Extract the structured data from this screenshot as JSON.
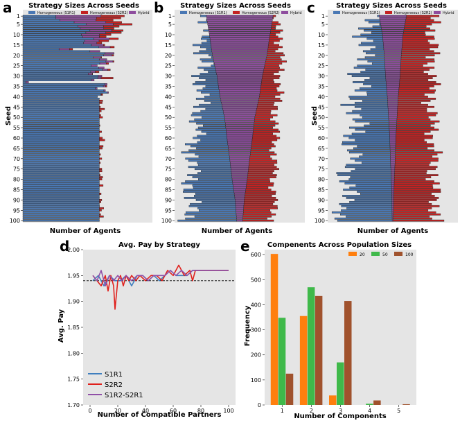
{
  "colors": {
    "s1r1": "#4a78b4",
    "s2r2": "#c42222",
    "hybrid": "#8e4d9e",
    "bar_edge": "#1a1a1a",
    "bg": "#e5e5e5",
    "orange": "#ff7f0e",
    "green": "#3fb94a",
    "brown": "#a0522d",
    "line_blue": "#3f7fbf",
    "line_red": "#e0201c",
    "line_purple": "#9050a8"
  },
  "panel_labels": [
    "a",
    "b",
    "c",
    "d",
    "e"
  ],
  "chart_data": [
    {
      "type": "bar",
      "orientation": "horizontal-stacked",
      "panel": "a",
      "title": "Strategy Sizes Across Seeds",
      "xlabel": "Number of Agents",
      "ylabel": "Seed",
      "legend": [
        "Homogeneous (S1R1)",
        "Homogeneous (S2R2)",
        "Hybrid"
      ],
      "ytick_labels": [
        "1",
        "5",
        "10",
        "15",
        "20",
        "25",
        "30",
        "35",
        "40",
        "45",
        "50",
        "55",
        "60",
        "65",
        "70",
        "75",
        "80",
        "85",
        "90",
        "95",
        "100"
      ],
      "n_seeds": 100,
      "x_max": 215,
      "profile": {
        "s1": [
          [
            1,
            40
          ],
          [
            5,
            88
          ],
          [
            10,
            108
          ],
          [
            15,
            115
          ],
          [
            20,
            120
          ],
          [
            30,
            125
          ],
          [
            38,
            127
          ],
          [
            100,
            127
          ]
        ],
        "h": [
          [
            1,
            75
          ],
          [
            5,
            45
          ],
          [
            10,
            30
          ],
          [
            15,
            20
          ],
          [
            20,
            14
          ],
          [
            30,
            6
          ],
          [
            38,
            2
          ],
          [
            40,
            0
          ],
          [
            100,
            0
          ]
        ],
        "s2": [
          [
            1,
            40
          ],
          [
            5,
            28
          ],
          [
            10,
            15
          ],
          [
            15,
            6
          ],
          [
            20,
            2
          ],
          [
            25,
            0
          ],
          [
            100,
            0
          ]
        ]
      },
      "noise": {
        "s1": 22,
        "h": 0,
        "s2": 10
      }
    },
    {
      "type": "bar",
      "orientation": "horizontal-stacked",
      "panel": "b",
      "title": "Strategy Sizes Across Seeds",
      "xlabel": "Number of Agents",
      "ylabel": "",
      "legend": [
        "Homogeneous (S1R1)",
        "Homogeneous (S2R2)",
        "Hybrid"
      ],
      "ytick_labels": [
        "1",
        "5",
        "10",
        "15",
        "20",
        "25",
        "30",
        "35",
        "40",
        "45",
        "50",
        "55",
        "60",
        "65",
        "70",
        "75",
        "80",
        "85",
        "90",
        "95",
        "100"
      ],
      "n_seeds": 100,
      "x_max": 215,
      "profile": {
        "s1": [
          [
            1,
            0
          ],
          [
            3,
            2
          ],
          [
            10,
            8
          ],
          [
            20,
            15
          ],
          [
            30,
            25
          ],
          [
            40,
            32
          ],
          [
            50,
            42
          ],
          [
            60,
            52
          ],
          [
            70,
            60
          ],
          [
            80,
            68
          ],
          [
            90,
            74
          ],
          [
            100,
            80
          ]
        ],
        "h": [
          [
            1,
            110
          ],
          [
            5,
            106
          ],
          [
            10,
            100
          ],
          [
            20,
            90
          ],
          [
            30,
            75
          ],
          [
            40,
            65
          ],
          [
            50,
            50
          ],
          [
            60,
            42
          ],
          [
            70,
            33
          ],
          [
            80,
            25
          ],
          [
            90,
            15
          ],
          [
            100,
            10
          ]
        ],
        "s2": [
          [
            1,
            0
          ],
          [
            3,
            2
          ],
          [
            10,
            15
          ],
          [
            20,
            22
          ],
          [
            30,
            28
          ],
          [
            40,
            30
          ],
          [
            50,
            32
          ],
          [
            60,
            38
          ],
          [
            70,
            40
          ],
          [
            80,
            45
          ],
          [
            90,
            48
          ],
          [
            100,
            52
          ]
        ]
      },
      "noise": {
        "s1": 22,
        "h": 0,
        "s2": 12
      }
    },
    {
      "type": "bar",
      "orientation": "horizontal-stacked",
      "panel": "c",
      "title": "Strategy Sizes Across Seeds",
      "xlabel": "Number of Agents",
      "ylabel": "Seed",
      "legend": [
        "Homogeneous (S1R1)",
        "Homogeneous (S2R2)",
        "Hybrid"
      ],
      "ytick_labels": [
        "1",
        "5",
        "10",
        "15",
        "20",
        "25",
        "30",
        "35",
        "40",
        "45",
        "50",
        "55",
        "60",
        "65",
        "70",
        "75",
        "80",
        "85",
        "90",
        "95",
        "100"
      ],
      "n_seeds": 100,
      "x_max": 215,
      "profile": {
        "s1": [
          [
            1,
            15
          ],
          [
            5,
            20
          ],
          [
            10,
            25
          ],
          [
            20,
            32
          ],
          [
            30,
            40
          ],
          [
            40,
            48
          ],
          [
            50,
            55
          ],
          [
            60,
            60
          ],
          [
            70,
            65
          ],
          [
            80,
            70
          ],
          [
            90,
            75
          ],
          [
            100,
            80
          ]
        ],
        "h": [
          [
            1,
            45
          ],
          [
            5,
            40
          ],
          [
            10,
            34
          ],
          [
            20,
            28
          ],
          [
            30,
            24
          ],
          [
            40,
            18
          ],
          [
            50,
            14
          ],
          [
            60,
            10
          ],
          [
            70,
            8
          ],
          [
            80,
            5
          ],
          [
            90,
            3
          ],
          [
            100,
            2
          ]
        ],
        "s2": [
          [
            1,
            45
          ],
          [
            20,
            50
          ],
          [
            40,
            55
          ],
          [
            60,
            60
          ],
          [
            80,
            65
          ],
          [
            100,
            70
          ]
        ]
      },
      "noise": {
        "s1": 28,
        "h": 0,
        "s2": 18
      }
    },
    {
      "type": "line",
      "panel": "d",
      "title": "Avg. Pay by Strategy",
      "xlabel": "Number of Compatible Partners",
      "ylabel": "Avg. Pay",
      "xlim": [
        -5,
        105
      ],
      "ylim": [
        1.7,
        2.0
      ],
      "xticks": [
        0,
        20,
        40,
        60,
        80,
        100
      ],
      "yticks": [
        1.7,
        1.75,
        1.8,
        1.85,
        1.9,
        1.95,
        2.0
      ],
      "ytick_labels": [
        "1.70",
        "1.75",
        "1.80",
        "1.85",
        "1.90",
        "1.95",
        "2.00"
      ],
      "xtick_labels": [
        "0",
        "20",
        "40",
        "60",
        "80",
        "100"
      ],
      "reference_line": 1.94,
      "series": [
        {
          "name": "S1R1",
          "x": [
            2,
            6,
            10,
            14,
            18,
            22,
            26,
            30,
            34,
            38,
            42,
            46,
            50,
            54,
            58,
            62,
            66,
            70,
            74,
            78,
            82,
            86,
            90,
            94,
            98,
            100
          ],
          "y": [
            1.94,
            1.95,
            1.93,
            1.95,
            1.94,
            1.94,
            1.95,
            1.93,
            1.95,
            1.95,
            1.94,
            1.95,
            1.94,
            1.95,
            1.96,
            1.95,
            1.95,
            1.95,
            1.96,
            1.96,
            1.96,
            1.96,
            1.96,
            1.96,
            1.96,
            1.96
          ]
        },
        {
          "name": "S2R2",
          "x": [
            2,
            5,
            8,
            11,
            13,
            15,
            17,
            18,
            20,
            22,
            24,
            26,
            28,
            30,
            33,
            36,
            40,
            44,
            48,
            52,
            56,
            60,
            64,
            68,
            72,
            74,
            76,
            80,
            84,
            88,
            92,
            96,
            100
          ],
          "y": [
            1.95,
            1.94,
            1.93,
            1.95,
            1.92,
            1.95,
            1.93,
            1.885,
            1.94,
            1.95,
            1.93,
            1.95,
            1.94,
            1.95,
            1.94,
            1.95,
            1.94,
            1.95,
            1.95,
            1.94,
            1.96,
            1.95,
            1.97,
            1.95,
            1.96,
            1.94,
            1.96,
            1.96,
            1.96,
            1.96,
            1.96,
            1.96,
            1.96
          ]
        },
        {
          "name": "S1R2-S2R1",
          "x": [
            2,
            5,
            8,
            11,
            14,
            17,
            20,
            23,
            26,
            30,
            34,
            38,
            42,
            46,
            50,
            54,
            58,
            62,
            66,
            70,
            74,
            78,
            82,
            86,
            90,
            94,
            98,
            100
          ],
          "y": [
            1.95,
            1.94,
            1.96,
            1.93,
            1.95,
            1.94,
            1.95,
            1.94,
            1.95,
            1.94,
            1.95,
            1.95,
            1.94,
            1.95,
            1.95,
            1.95,
            1.96,
            1.95,
            1.96,
            1.95,
            1.96,
            1.96,
            1.96,
            1.96,
            1.96,
            1.96,
            1.96,
            1.96
          ]
        }
      ]
    },
    {
      "type": "bar",
      "panel": "e",
      "title": "Compenents Across Population Sizes",
      "xlabel": "Number of Components",
      "ylabel": "Frequency",
      "categories": [
        "1",
        "2",
        "3",
        "4",
        "5"
      ],
      "ylim": [
        0,
        620
      ],
      "yticks": [
        0,
        100,
        200,
        300,
        400,
        500,
        600
      ],
      "ytick_labels": [
        "0",
        "100",
        "200",
        "300",
        "400",
        "500",
        "600"
      ],
      "series": [
        {
          "name": "20",
          "values": [
            603,
            355,
            38,
            0,
            0
          ]
        },
        {
          "name": "50",
          "values": [
            348,
            470,
            170,
            5,
            0
          ]
        },
        {
          "name": "100",
          "values": [
            125,
            435,
            415,
            18,
            3
          ]
        }
      ]
    }
  ]
}
